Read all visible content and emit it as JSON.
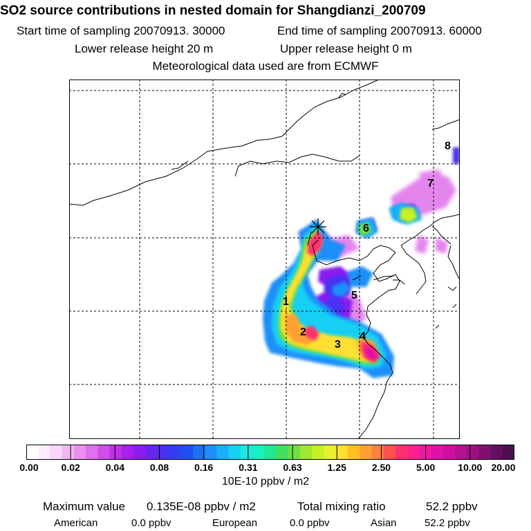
{
  "header": {
    "title": "SO2 source contributions in nested domain for Shangdianzi_200709",
    "start_time": "Start time of sampling 20070913. 30000",
    "end_time": "End time of sampling 20070913. 60000",
    "lower_release": "Lower release height   20 m",
    "upper_release": "Upper release height    0 m",
    "met_data": "Meteorological data used are from ECMWF"
  },
  "map": {
    "receptor_marker": "receptor-star",
    "source_labels": [
      {
        "id": "1",
        "text": "1"
      },
      {
        "id": "2",
        "text": "2"
      },
      {
        "id": "3",
        "text": "3"
      },
      {
        "id": "4",
        "text": "4"
      },
      {
        "id": "5",
        "text": "5"
      },
      {
        "id": "6",
        "text": "6"
      },
      {
        "id": "7",
        "text": "7"
      },
      {
        "id": "8",
        "text": "8"
      }
    ]
  },
  "colorbar": {
    "ticks": [
      "0.00",
      "0.02",
      "0.04",
      "0.08",
      "0.16",
      "0.31",
      "0.63",
      "1.25",
      "2.50",
      "5.00",
      "10.00",
      "20.00"
    ],
    "colors": [
      "#ffffff",
      "#fdeefd",
      "#f8d6f8",
      "#f2b6f2",
      "#ea90ee",
      "#e070ec",
      "#d24ee8",
      "#c030e8",
      "#a820ec",
      "#8a1ef0",
      "#6a24f0",
      "#4a30f2",
      "#3040f0",
      "#2050f0",
      "#1c70f4",
      "#1c90f8",
      "#18b0fa",
      "#18d0f4",
      "#18e8e0",
      "#18f0c0",
      "#20e890",
      "#40e060",
      "#70e040",
      "#a0e830",
      "#c8f020",
      "#e8f030",
      "#ffe030",
      "#ffc020",
      "#ffa030",
      "#ff8040",
      "#ff5050",
      "#ff3070",
      "#ff2090",
      "#f018a0",
      "#e010a8",
      "#d010a0",
      "#b81090",
      "#9c1080",
      "#801070",
      "#641060",
      "#4c1050"
    ],
    "unit": "10E-10 ppbv / m2"
  },
  "summary": {
    "max_label": "Maximum value",
    "max_value": "0.135E-08 ppbv / m2",
    "total_label": "Total mixing ratio",
    "total_value": "52.2 ppbv",
    "american_label": "American",
    "american_value": "0.0 ppbv",
    "european_label": "European",
    "european_value": "0.0 ppbv",
    "asian_label": "Asian",
    "asian_value": "52.2 ppbv"
  }
}
